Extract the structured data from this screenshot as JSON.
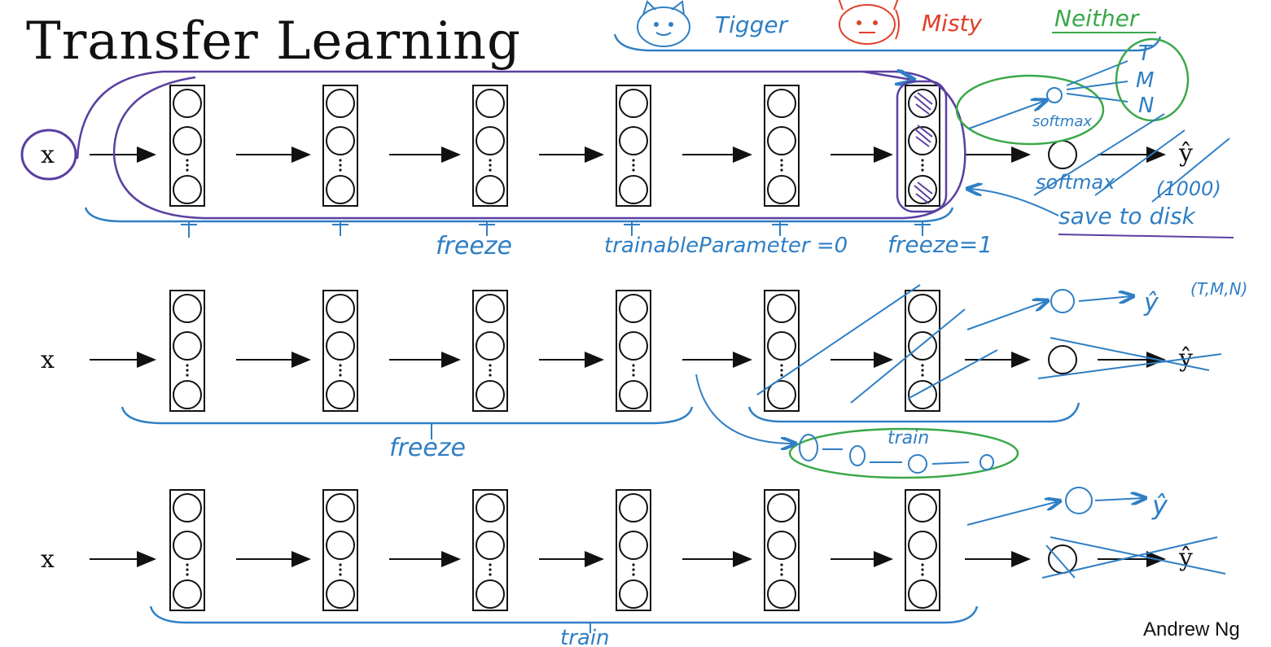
{
  "title": "Transfer Learning",
  "author": "Andrew Ng",
  "input_label": "x",
  "colors": {
    "ink": "#111111",
    "blue": "#2f7fc4",
    "purple": "#5a3fa0",
    "red": "#e0402a",
    "green": "#3aa84a"
  },
  "legend": {
    "tigger": "Tigger",
    "misty": "Misty",
    "neither": "Neither"
  },
  "row1": {
    "output_label": "ŷ",
    "softmax_old": "softmax",
    "softmax_old_size": "(1000)",
    "softmax_new": "softmax",
    "classes": [
      "T",
      "M",
      "N"
    ],
    "save_note": "save to disk",
    "brace_labels": [
      "freeze",
      "trainableParameter =0",
      "freeze=1"
    ]
  },
  "row2": {
    "output_label": "ŷ",
    "output_classes": "(T,M,N)",
    "freeze_label": "freeze",
    "train_label": "train"
  },
  "row3": {
    "output_label": "ŷ",
    "train_label": "train"
  }
}
